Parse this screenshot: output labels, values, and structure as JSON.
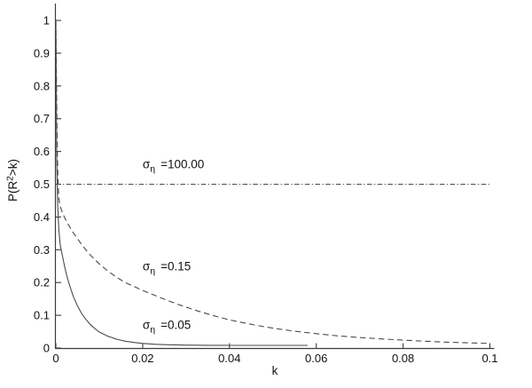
{
  "chart_data": {
    "type": "line",
    "title": "",
    "xlabel": "k",
    "ylabel": {
      "pre": "P(R",
      "sup": "2",
      "post": ">k)"
    },
    "xlim": [
      0,
      0.1
    ],
    "ylim": [
      0,
      1.05
    ],
    "grid": false,
    "legend_position": "none",
    "xticks": {
      "values": [
        0,
        0.02,
        0.04,
        0.06,
        0.08,
        0.1
      ],
      "labels": [
        "0",
        "0.02",
        "0.04",
        "0.06",
        "0.08",
        "0.1"
      ]
    },
    "yticks": {
      "values": [
        0,
        0.1,
        0.2,
        0.3,
        0.4,
        0.5,
        0.6,
        0.7,
        0.8,
        0.9,
        1
      ],
      "labels": [
        "0",
        "0.1",
        "0.2",
        "0.3",
        "0.4",
        "0.5",
        "0.6",
        "0.7",
        "0.8",
        "0.9",
        "1"
      ]
    },
    "series": [
      {
        "name": "sigma_eta = 100.00",
        "line_style": "dash-dot",
        "points": [
          [
            0,
            0.5
          ],
          [
            0.1,
            0.5
          ]
        ]
      },
      {
        "name": "sigma_eta = 0.15",
        "line_style": "dashed",
        "points": [
          [
            0,
            1
          ],
          [
            0.0003,
            0.62
          ],
          [
            0.0005,
            0.51
          ],
          [
            0.0007,
            0.455
          ],
          [
            0.001,
            0.432
          ],
          [
            0.0015,
            0.415
          ],
          [
            0.002,
            0.398
          ],
          [
            0.003,
            0.374
          ],
          [
            0.004,
            0.352
          ],
          [
            0.005,
            0.333
          ],
          [
            0.006,
            0.315
          ],
          [
            0.007,
            0.298
          ],
          [
            0.008,
            0.283
          ],
          [
            0.009,
            0.27
          ],
          [
            0.01,
            0.257
          ],
          [
            0.012,
            0.235
          ],
          [
            0.014,
            0.216
          ],
          [
            0.016,
            0.2
          ],
          [
            0.018,
            0.188
          ],
          [
            0.02,
            0.176
          ],
          [
            0.022,
            0.165
          ],
          [
            0.025,
            0.149
          ],
          [
            0.028,
            0.134
          ],
          [
            0.032,
            0.116
          ],
          [
            0.036,
            0.1
          ],
          [
            0.04,
            0.086
          ],
          [
            0.044,
            0.075
          ],
          [
            0.048,
            0.065
          ],
          [
            0.052,
            0.057
          ],
          [
            0.056,
            0.05
          ],
          [
            0.06,
            0.044
          ],
          [
            0.065,
            0.037
          ],
          [
            0.07,
            0.032
          ],
          [
            0.075,
            0.028
          ],
          [
            0.08,
            0.024
          ],
          [
            0.085,
            0.021
          ],
          [
            0.09,
            0.018
          ],
          [
            0.095,
            0.016
          ],
          [
            0.1,
            0.014
          ]
        ]
      },
      {
        "name": "sigma_eta = 0.05",
        "line_style": "solid",
        "points": [
          [
            0,
            1
          ],
          [
            0.0002,
            0.58
          ],
          [
            0.0004,
            0.44
          ],
          [
            0.0007,
            0.36
          ],
          [
            0.001,
            0.315
          ],
          [
            0.0015,
            0.283
          ],
          [
            0.002,
            0.25
          ],
          [
            0.0025,
            0.222
          ],
          [
            0.003,
            0.198
          ],
          [
            0.004,
            0.158
          ],
          [
            0.005,
            0.128
          ],
          [
            0.006,
            0.104
          ],
          [
            0.007,
            0.086
          ],
          [
            0.008,
            0.071
          ],
          [
            0.009,
            0.059
          ],
          [
            0.01,
            0.049
          ],
          [
            0.012,
            0.036
          ],
          [
            0.014,
            0.027
          ],
          [
            0.016,
            0.021
          ],
          [
            0.018,
            0.017
          ],
          [
            0.02,
            0.014
          ],
          [
            0.023,
            0.0115
          ],
          [
            0.026,
            0.01
          ],
          [
            0.03,
            0.009
          ],
          [
            0.035,
            0.0085
          ],
          [
            0.04,
            0.008
          ],
          [
            0.045,
            0.008
          ],
          [
            0.05,
            0.008
          ],
          [
            0.055,
            0.008
          ],
          [
            0.058,
            0.008
          ]
        ]
      }
    ],
    "annotations": [
      {
        "sigma": "σ",
        "sub": "η",
        "eq": "=100.00",
        "x": 0.02,
        "y": 0.56
      },
      {
        "sigma": "σ",
        "sub": "η",
        "eq": "=0.15",
        "x": 0.02,
        "y": 0.249
      },
      {
        "sigma": "σ",
        "sub": "η",
        "eq": "=0.05",
        "x": 0.02,
        "y": 0.07
      }
    ],
    "colors": {
      "axis": "#3c3c3c",
      "line": "#4a4a4a",
      "text": "#111111",
      "background": "#ffffff"
    }
  }
}
